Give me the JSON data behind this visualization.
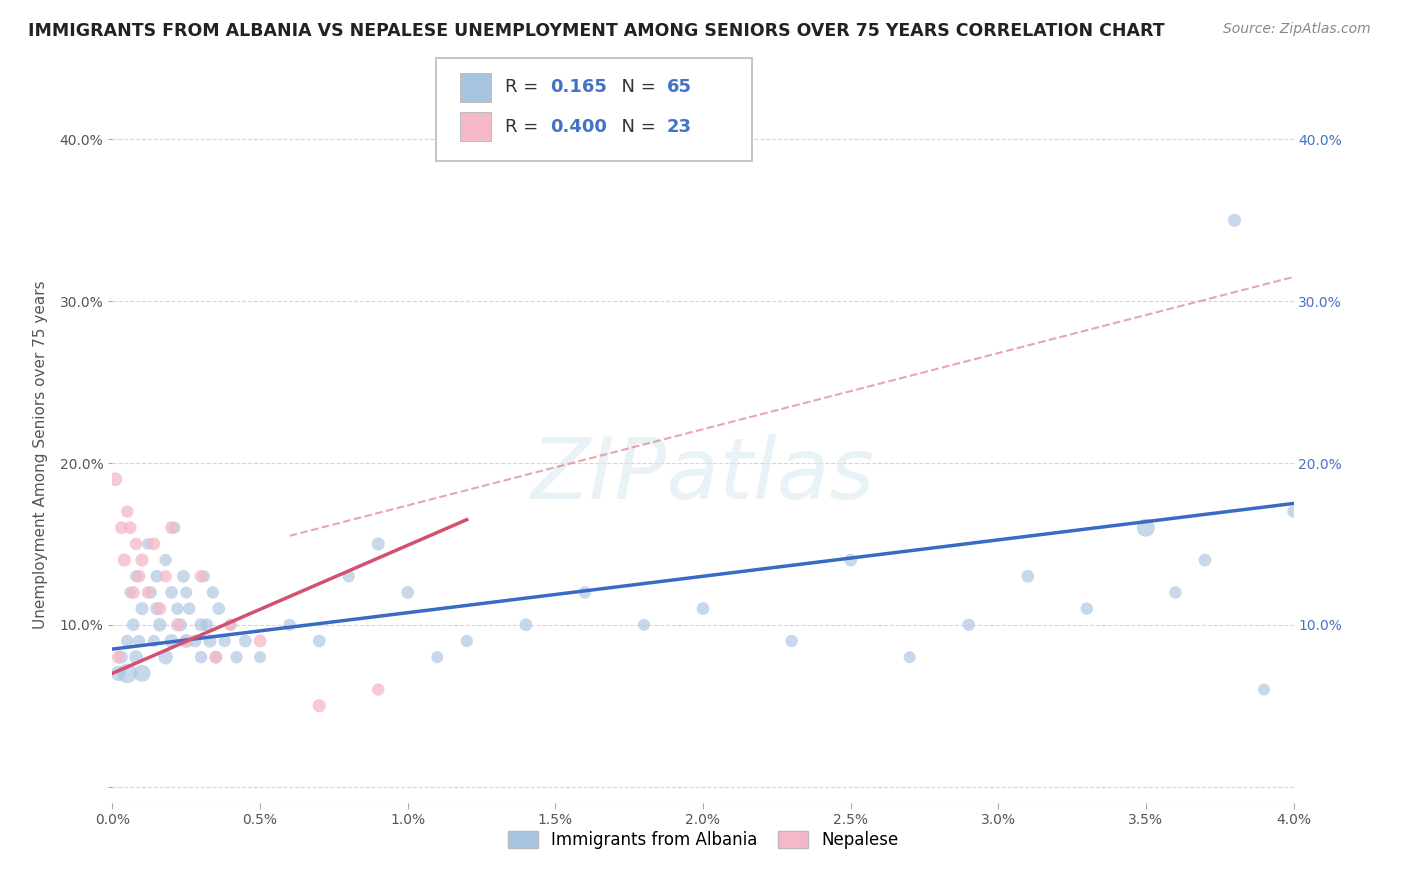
{
  "title": "IMMIGRANTS FROM ALBANIA VS NEPALESE UNEMPLOYMENT AMONG SENIORS OVER 75 YEARS CORRELATION CHART",
  "source": "Source: ZipAtlas.com",
  "ylabel": "Unemployment Among Seniors over 75 years",
  "xlim": [
    0.0,
    0.04
  ],
  "ylim": [
    -0.01,
    0.42
  ],
  "xticks": [
    0.0,
    0.005,
    0.01,
    0.015,
    0.02,
    0.025,
    0.03,
    0.035,
    0.04
  ],
  "xtick_labels": [
    "0.0%",
    "0.5%",
    "1.0%",
    "1.5%",
    "2.0%",
    "2.5%",
    "3.0%",
    "3.5%",
    "4.0%"
  ],
  "yticks": [
    0.0,
    0.1,
    0.2,
    0.3,
    0.4
  ],
  "ytick_labels": [
    "",
    "10.0%",
    "20.0%",
    "30.0%",
    "40.0%"
  ],
  "blue_R": 0.165,
  "blue_N": 65,
  "pink_R": 0.4,
  "pink_N": 23,
  "blue_color": "#a8c4e0",
  "pink_color": "#f4b8c8",
  "blue_line_color": "#3a6bc4",
  "pink_line_color": "#d45070",
  "dashed_line_color": "#e08090",
  "watermark_text": "ZIPatlas",
  "blue_line_x": [
    0.0,
    0.04
  ],
  "blue_line_y": [
    0.085,
    0.175
  ],
  "pink_line_x": [
    0.0,
    0.012
  ],
  "pink_line_y": [
    0.07,
    0.165
  ],
  "dash_line_x": [
    0.006,
    0.04
  ],
  "dash_line_y": [
    0.155,
    0.315
  ],
  "blue_x": [
    0.0002,
    0.0003,
    0.0005,
    0.0005,
    0.0006,
    0.0007,
    0.0008,
    0.0008,
    0.0009,
    0.001,
    0.001,
    0.0012,
    0.0013,
    0.0014,
    0.0015,
    0.0015,
    0.0016,
    0.0018,
    0.0018,
    0.002,
    0.002,
    0.0021,
    0.0022,
    0.0023,
    0.0024,
    0.0025,
    0.0025,
    0.0026,
    0.0028,
    0.003,
    0.003,
    0.0031,
    0.0032,
    0.0033,
    0.0034,
    0.0035,
    0.0036,
    0.0038,
    0.004,
    0.0042,
    0.0045,
    0.005,
    0.006,
    0.007,
    0.008,
    0.009,
    0.01,
    0.011,
    0.012,
    0.014,
    0.016,
    0.018,
    0.02,
    0.023,
    0.025,
    0.027,
    0.029,
    0.031,
    0.033,
    0.035,
    0.036,
    0.037,
    0.038,
    0.039,
    0.04
  ],
  "blue_y": [
    0.07,
    0.08,
    0.09,
    0.07,
    0.12,
    0.1,
    0.08,
    0.13,
    0.09,
    0.11,
    0.07,
    0.15,
    0.12,
    0.09,
    0.13,
    0.11,
    0.1,
    0.14,
    0.08,
    0.12,
    0.09,
    0.16,
    0.11,
    0.1,
    0.13,
    0.12,
    0.09,
    0.11,
    0.09,
    0.1,
    0.08,
    0.13,
    0.1,
    0.09,
    0.12,
    0.08,
    0.11,
    0.09,
    0.1,
    0.08,
    0.09,
    0.08,
    0.1,
    0.09,
    0.13,
    0.15,
    0.12,
    0.08,
    0.09,
    0.1,
    0.12,
    0.1,
    0.11,
    0.09,
    0.14,
    0.08,
    0.1,
    0.13,
    0.11,
    0.16,
    0.12,
    0.14,
    0.35,
    0.06,
    0.17
  ],
  "blue_s": [
    120,
    90,
    80,
    200,
    70,
    85,
    100,
    75,
    80,
    90,
    150,
    70,
    80,
    75,
    85,
    90,
    95,
    80,
    110,
    85,
    100,
    75,
    80,
    90,
    85,
    75,
    100,
    80,
    85,
    90,
    80,
    75,
    85,
    90,
    80,
    75,
    85,
    80,
    75,
    80,
    85,
    75,
    80,
    85,
    80,
    90,
    85,
    75,
    80,
    85,
    80,
    75,
    85,
    80,
    85,
    75,
    80,
    85,
    80,
    170,
    80,
    85,
    90,
    75,
    80
  ],
  "pink_x": [
    0.0001,
    0.0002,
    0.0003,
    0.0004,
    0.0005,
    0.0006,
    0.0007,
    0.0008,
    0.0009,
    0.001,
    0.0012,
    0.0014,
    0.0016,
    0.0018,
    0.002,
    0.0022,
    0.0025,
    0.003,
    0.0035,
    0.004,
    0.005,
    0.007,
    0.009
  ],
  "pink_y": [
    0.19,
    0.08,
    0.16,
    0.14,
    0.17,
    0.16,
    0.12,
    0.15,
    0.13,
    0.14,
    0.12,
    0.15,
    0.11,
    0.13,
    0.16,
    0.1,
    0.09,
    0.13,
    0.08,
    0.1,
    0.09,
    0.05,
    0.06
  ],
  "pink_s": [
    100,
    90,
    85,
    90,
    80,
    85,
    90,
    80,
    85,
    90,
    80,
    85,
    90,
    80,
    85,
    90,
    80,
    85,
    90,
    80,
    85,
    90,
    80
  ]
}
